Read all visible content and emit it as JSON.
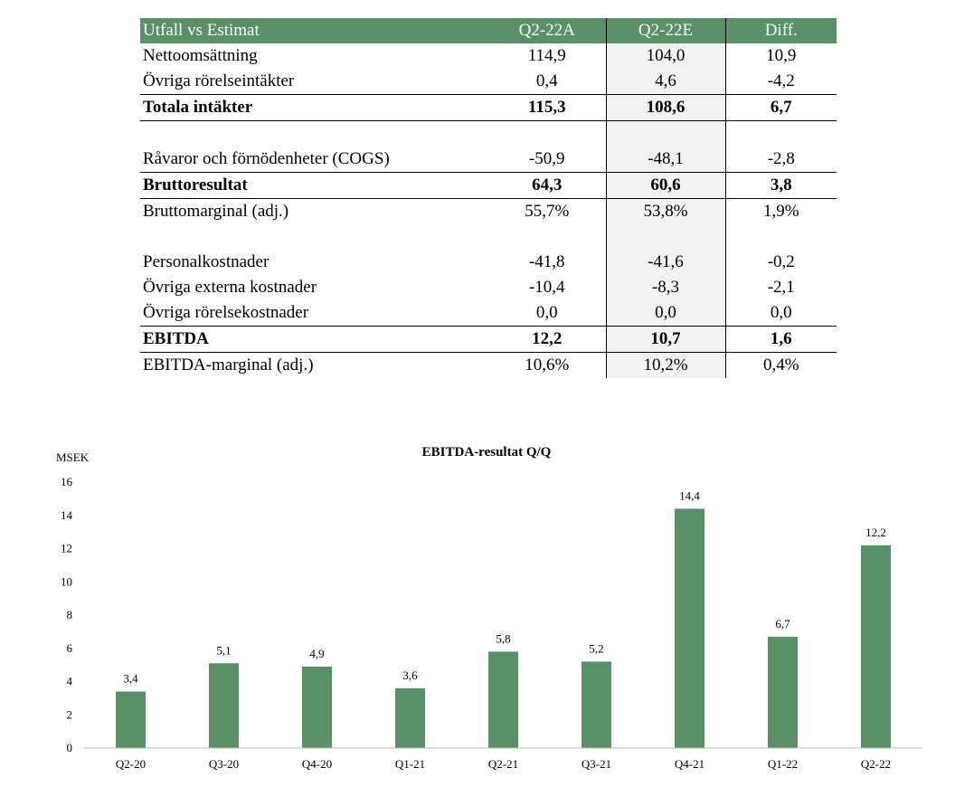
{
  "table": {
    "headers": [
      "Utfall vs Estimat",
      "Q2-22A",
      "Q2-22E",
      "Diff."
    ],
    "rows": [
      {
        "label": "Nettoomsättning",
        "a": "114,9",
        "e": "104,0",
        "d": "10,9",
        "style": ""
      },
      {
        "label": "Övriga rörelseintäkter",
        "a": "0,4",
        "e": "4,6",
        "d": "-4,2",
        "style": ""
      },
      {
        "label": "Totala intäkter",
        "a": "115,3",
        "e": "108,6",
        "d": "6,7",
        "style": "bold bt bb"
      },
      {
        "label": "",
        "a": "",
        "e": "",
        "d": "",
        "style": ""
      },
      {
        "label": "Råvaror och förnödenheter (COGS)",
        "a": "-50,9",
        "e": "-48,1",
        "d": "-2,8",
        "style": ""
      },
      {
        "label": "Bruttoresultat",
        "a": "64,3",
        "e": "60,6",
        "d": "3,8",
        "style": "bold bt bb"
      },
      {
        "label": "Bruttomarginal (adj.)",
        "a": "55,7%",
        "e": "53,8%",
        "d": "1,9%",
        "style": ""
      },
      {
        "label": "",
        "a": "",
        "e": "",
        "d": "",
        "style": ""
      },
      {
        "label": "Personalkostnader",
        "a": "-41,8",
        "e": "-41,6",
        "d": "-0,2",
        "style": ""
      },
      {
        "label": "Övriga externa kostnader",
        "a": "-10,4",
        "e": "-8,3",
        "d": "-2,1",
        "style": ""
      },
      {
        "label": "Övriga rörelsekostnader",
        "a": "0,0",
        "e": "0,0",
        "d": "0,0",
        "style": ""
      },
      {
        "label": "EBITDA",
        "a": "12,2",
        "e": "10,7",
        "d": "1,6",
        "style": "bold bt bb"
      },
      {
        "label": "EBITDA-marginal (adj.)",
        "a": "10,6%",
        "e": "10,2%",
        "d": "0,4%",
        "style": ""
      }
    ]
  },
  "chart_data": {
    "type": "bar",
    "title": "EBITDA-resultat Q/Q",
    "ylabel": "MSEK",
    "xlabel": "",
    "categories": [
      "Q2-20",
      "Q3-20",
      "Q4-20",
      "Q1-21",
      "Q2-21",
      "Q3-21",
      "Q4-21",
      "Q1-22",
      "Q2-22"
    ],
    "values": [
      3.4,
      5.1,
      4.9,
      3.6,
      5.8,
      5.2,
      14.4,
      6.7,
      12.2
    ],
    "value_labels": [
      "3,4",
      "5,1",
      "4,9",
      "3,6",
      "5,8",
      "5,2",
      "14,4",
      "6,7",
      "12,2"
    ],
    "ylim": [
      0,
      16
    ],
    "yticks": [
      0,
      2,
      4,
      6,
      8,
      10,
      12,
      14,
      16
    ],
    "grid": false,
    "bar_color": "#5a9066"
  }
}
